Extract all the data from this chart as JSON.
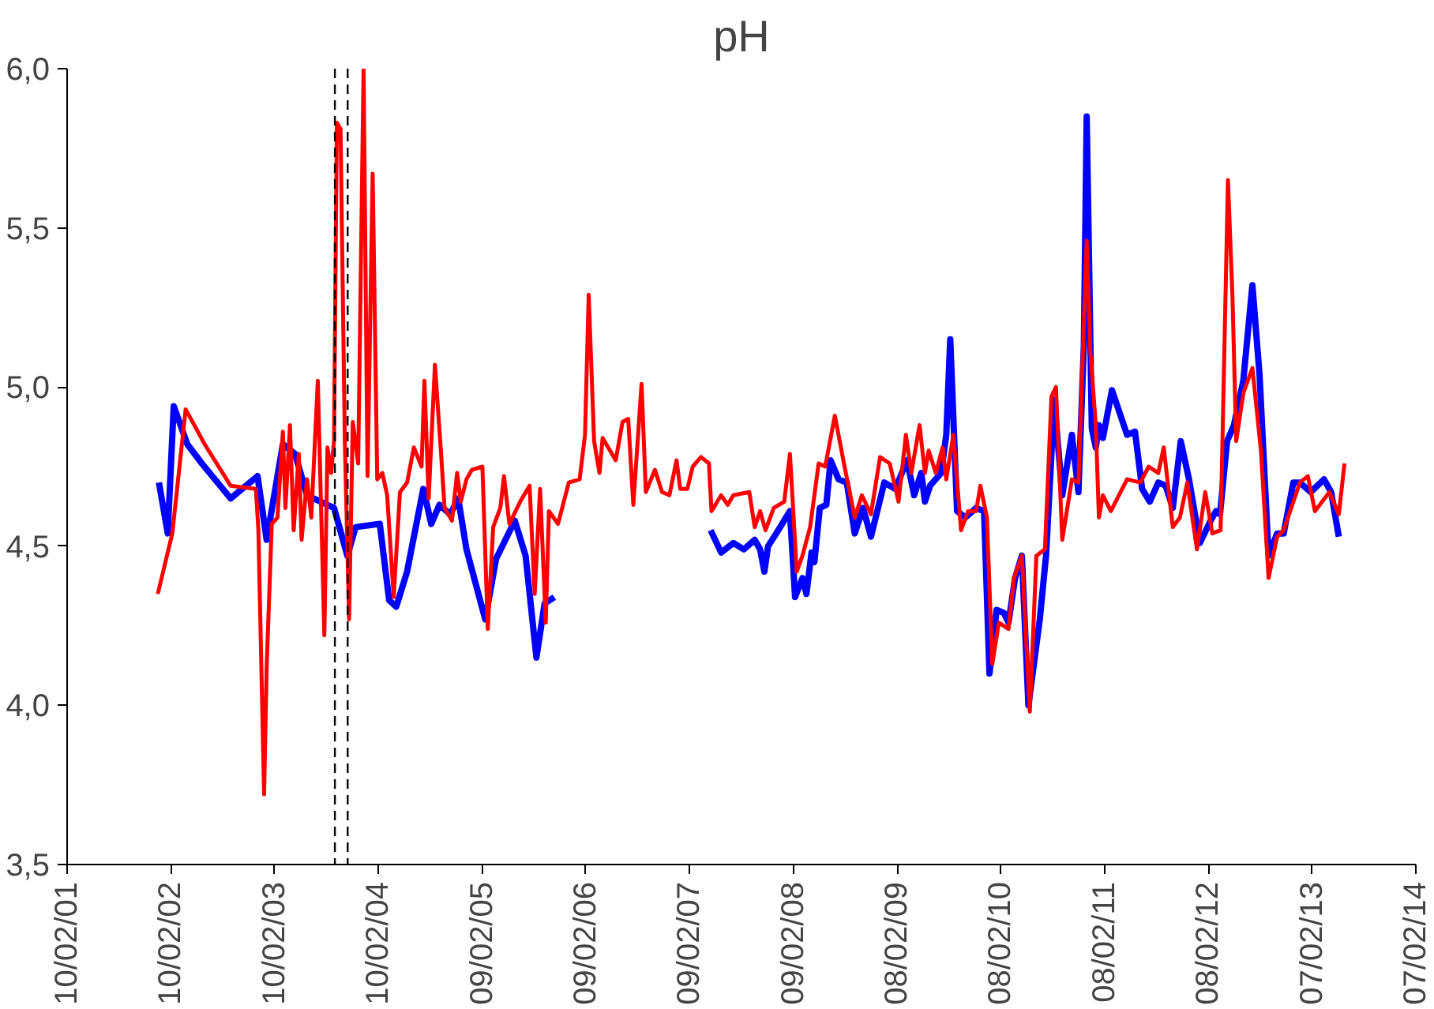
{
  "chart_data": {
    "type": "line",
    "title": "pH",
    "xlim": [
      "2001-02-10",
      "2014-02-07"
    ],
    "xticks": [
      {
        "value": "2001-02-10",
        "label": "10/02/01"
      },
      {
        "value": "2002-02-10",
        "label": "10/02/02"
      },
      {
        "value": "2003-02-10",
        "label": "10/02/03"
      },
      {
        "value": "2004-02-10",
        "label": "10/02/04"
      },
      {
        "value": "2005-02-09",
        "label": "09/02/05"
      },
      {
        "value": "2006-02-09",
        "label": "09/02/06"
      },
      {
        "value": "2007-02-09",
        "label": "09/02/07"
      },
      {
        "value": "2008-02-09",
        "label": "09/02/08"
      },
      {
        "value": "2009-02-08",
        "label": "08/02/09"
      },
      {
        "value": "2010-02-08",
        "label": "08/02/10"
      },
      {
        "value": "2011-02-08",
        "label": "08/02/11"
      },
      {
        "value": "2012-02-08",
        "label": "08/02/12"
      },
      {
        "value": "2013-02-07",
        "label": "07/02/13"
      },
      {
        "value": "2014-02-07",
        "label": "07/02/14"
      }
    ],
    "ylim": [
      3.5,
      6.0
    ],
    "yticks": [
      {
        "value": 3.5,
        "label": "3,5"
      },
      {
        "value": 4.0,
        "label": "4,0"
      },
      {
        "value": 4.5,
        "label": "4,5"
      },
      {
        "value": 5.0,
        "label": "5,0"
      },
      {
        "value": 5.5,
        "label": "5,5"
      },
      {
        "value": 6.0,
        "label": "6,0"
      }
    ],
    "grid": false,
    "line_style": "solid",
    "ref_lines": [
      {
        "axis": "x",
        "value": "2003-09-10",
        "color": "#000000",
        "line_style": "dashed"
      },
      {
        "axis": "x",
        "value": "2003-10-25",
        "color": "#000000",
        "line_style": "dashed"
      }
    ],
    "series": [
      {
        "color": "#0000ff",
        "x": [
          "2001-12-30",
          "2002-01-30",
          "2002-02-20",
          "2002-04-09",
          "2002-05-30",
          "2002-09-08",
          "2002-12-12",
          "2003-01-13",
          "2003-03-11",
          "2003-04-23",
          "2003-06-04",
          "2003-09-07",
          "2003-10-24",
          "2003-11-22",
          "2004-02-15",
          "2004-03-19",
          "2004-04-13",
          "2004-05-21",
          "2004-07-17",
          "2004-08-14",
          "2004-09-12",
          "2004-10-20",
          "2004-11-17",
          "2004-12-16",
          "2005-02-20",
          "2005-03-30",
          "2005-06-04",
          "2005-07-12",
          "2005-08-19",
          "2005-09-17",
          "2005-10-21",
          "2006-07-01",
          "2007-04-24",
          "2007-05-31",
          "2007-07-13",
          "2007-08-19",
          "2007-09-26",
          "2007-10-15",
          "2007-10-30",
          "2007-11-12",
          "2007-12-11",
          "2008-01-28",
          "2008-02-15",
          "2008-03-12",
          "2008-03-26",
          "2008-04-13",
          "2008-04-23",
          "2008-05-12",
          "2008-06-04",
          "2008-06-19",
          "2008-07-17",
          "2008-08-15",
          "2008-09-12",
          "2008-10-11",
          "2008-11-08",
          "2008-12-25",
          "2009-02-02",
          "2009-03-15",
          "2009-04-09",
          "2009-05-04",
          "2009-05-17",
          "2009-06-04",
          "2009-07-13",
          "2009-07-31",
          "2009-08-14",
          "2009-09-07",
          "2009-10-06",
          "2009-11-13",
          "2009-12-11",
          "2009-12-30",
          "2010-01-24",
          "2010-02-19",
          "2010-03-07",
          "2010-03-30",
          "2010-04-23",
          "2010-05-16",
          "2010-06-25",
          "2010-07-17",
          "2010-08-15",
          "2010-09-12",
          "2010-10-16",
          "2010-11-08",
          "2010-11-27",
          "2010-12-07",
          "2010-12-25",
          "2011-01-08",
          "2011-01-19",
          "2011-02-02",
          "2011-03-06",
          "2011-04-28",
          "2011-05-26",
          "2011-06-20",
          "2011-07-17",
          "2011-08-16",
          "2011-09-11",
          "2011-10-06",
          "2011-11-03",
          "2011-12-02",
          "2012-01-09",
          "2012-02-16",
          "2012-03-06",
          "2012-03-20",
          "2012-04-14",
          "2012-05-08",
          "2012-06-10",
          "2012-07-12",
          "2012-08-06",
          "2012-09-07",
          "2012-10-07",
          "2012-10-30",
          "2012-12-03",
          "2012-12-26",
          "2013-02-02",
          "2013-03-21",
          "2013-04-15",
          "2013-05-12"
        ],
        "values": [
          4.7,
          4.54,
          4.94,
          4.82,
          4.76,
          4.65,
          4.72,
          4.52,
          4.82,
          4.79,
          4.66,
          4.62,
          4.47,
          4.56,
          4.57,
          4.33,
          4.31,
          4.42,
          4.68,
          4.57,
          4.63,
          4.6,
          4.65,
          4.49,
          4.27,
          4.46,
          4.58,
          4.47,
          4.15,
          4.32,
          4.34,
          null,
          4.55,
          4.48,
          4.51,
          4.49,
          4.52,
          4.49,
          4.42,
          4.5,
          4.54,
          4.61,
          4.34,
          4.4,
          4.35,
          4.48,
          4.45,
          4.62,
          4.63,
          4.77,
          4.71,
          4.7,
          4.54,
          4.62,
          4.53,
          4.7,
          4.68,
          4.77,
          4.66,
          4.73,
          4.64,
          4.69,
          4.73,
          4.85,
          5.15,
          4.61,
          4.59,
          4.62,
          4.61,
          4.1,
          4.3,
          4.29,
          4.26,
          4.4,
          4.47,
          4.0,
          4.27,
          4.47,
          4.96,
          4.66,
          4.85,
          4.67,
          5.13,
          5.85,
          4.87,
          4.81,
          4.88,
          4.84,
          4.99,
          4.85,
          4.86,
          4.68,
          4.64,
          4.7,
          4.69,
          4.62,
          4.83,
          4.71,
          4.51,
          4.58,
          4.61,
          4.6,
          4.83,
          4.88,
          5.02,
          5.32,
          5.04,
          4.47,
          4.54,
          4.54,
          4.7,
          4.7,
          4.67,
          4.71,
          4.67,
          4.53
        ]
      },
      {
        "color": "#ff0000",
        "x": [
          "2001-12-26",
          "2002-02-15",
          "2002-04-03",
          "2002-06-09",
          "2002-09-08",
          "2002-12-06",
          "2002-12-15",
          "2003-01-04",
          "2003-01-13",
          "2003-01-31",
          "2003-02-20",
          "2003-03-11",
          "2003-03-20",
          "2003-04-05",
          "2003-04-18",
          "2003-05-06",
          "2003-05-16",
          "2003-06-04",
          "2003-06-19",
          "2003-07-12",
          "2003-08-04",
          "2003-08-15",
          "2003-08-28",
          "2003-09-07",
          "2003-09-17",
          "2003-09-30",
          "2003-10-15",
          "2003-10-30",
          "2003-11-12",
          "2003-12-01",
          "2003-12-20",
          "2004-01-03",
          "2004-01-21",
          "2004-02-06",
          "2004-02-24",
          "2004-03-12",
          "2004-04-04",
          "2004-04-26",
          "2004-05-21",
          "2004-06-14",
          "2004-07-11",
          "2004-07-21",
          "2004-08-05",
          "2004-08-27",
          "2004-09-17",
          "2004-09-30",
          "2004-10-26",
          "2004-11-13",
          "2004-11-26",
          "2004-12-16",
          "2005-01-04",
          "2005-02-10",
          "2005-03-01",
          "2005-03-20",
          "2005-04-14",
          "2005-04-27",
          "2005-05-16",
          "2005-06-23",
          "2005-07-26",
          "2005-08-13",
          "2005-09-01",
          "2005-09-21",
          "2005-10-02",
          "2005-11-03",
          "2005-12-11",
          "2006-01-18",
          "2006-02-06",
          "2006-02-19",
          "2006-03-10",
          "2006-03-29",
          "2006-04-09",
          "2006-05-25",
          "2006-06-18",
          "2006-07-08",
          "2006-07-26",
          "2006-08-24",
          "2006-09-08",
          "2006-10-10",
          "2006-11-04",
          "2006-11-30",
          "2006-12-25",
          "2007-01-07",
          "2007-02-01",
          "2007-02-20",
          "2007-03-21",
          "2007-04-18",
          "2007-04-27",
          "2007-05-31",
          "2007-06-23",
          "2007-07-13",
          "2007-09-07",
          "2007-09-26",
          "2007-10-15",
          "2007-11-03",
          "2007-12-02",
          "2008-01-08",
          "2008-01-28",
          "2008-02-21",
          "2008-03-12",
          "2008-04-08",
          "2008-05-08",
          "2008-05-31",
          "2008-07-04",
          "2008-08-05",
          "2008-09-12",
          "2008-10-07",
          "2008-11-08",
          "2008-12-10",
          "2009-01-13",
          "2009-02-13",
          "2009-03-11",
          "2009-03-30",
          "2009-04-28",
          "2009-05-17",
          "2009-05-30",
          "2009-06-24",
          "2009-07-18",
          "2009-07-31",
          "2009-08-25",
          "2009-09-21",
          "2009-10-16",
          "2009-11-13",
          "2009-11-28",
          "2009-12-21",
          "2010-01-09",
          "2010-02-01",
          "2010-03-07",
          "2010-03-26",
          "2010-04-23",
          "2010-05-21",
          "2010-06-13",
          "2010-07-13",
          "2010-08-05",
          "2010-08-21",
          "2010-09-12",
          "2010-10-16",
          "2010-11-08",
          "2010-12-07",
          "2010-12-20",
          "2011-01-08",
          "2011-01-19",
          "2011-02-02",
          "2011-03-02",
          "2011-04-28",
          "2011-06-14",
          "2011-07-13",
          "2011-08-16",
          "2011-09-04",
          "2011-10-06",
          "2011-10-31",
          "2011-11-26",
          "2011-12-30",
          "2012-01-28",
          "2012-02-22",
          "2012-03-22",
          "2012-04-17",
          "2012-05-03",
          "2012-05-16",
          "2012-06-10",
          "2012-07-12",
          "2012-08-11",
          "2012-09-07",
          "2012-10-07",
          "2012-10-30",
          "2012-12-26",
          "2013-01-23",
          "2013-02-17",
          "2013-04-09",
          "2013-05-12",
          "2013-06-01"
        ],
        "values": [
          4.35,
          4.54,
          4.93,
          4.82,
          4.69,
          4.68,
          4.55,
          3.72,
          4.12,
          4.57,
          4.59,
          4.86,
          4.62,
          4.88,
          4.55,
          4.79,
          4.52,
          4.71,
          4.59,
          5.02,
          4.22,
          4.81,
          4.73,
          4.83,
          5.83,
          5.81,
          4.83,
          4.27,
          4.89,
          4.76,
          6.0,
          4.72,
          5.67,
          4.71,
          4.73,
          4.66,
          4.34,
          4.67,
          4.7,
          4.81,
          4.75,
          5.02,
          4.65,
          5.07,
          4.8,
          4.62,
          4.58,
          4.73,
          4.64,
          4.71,
          4.74,
          4.75,
          4.24,
          4.56,
          4.62,
          4.72,
          4.57,
          4.64,
          4.69,
          4.35,
          4.68,
          4.26,
          4.61,
          4.57,
          4.7,
          4.71,
          4.85,
          5.29,
          4.83,
          4.73,
          4.84,
          4.77,
          4.89,
          4.9,
          4.63,
          5.01,
          4.67,
          4.74,
          4.67,
          4.66,
          4.77,
          4.68,
          4.68,
          4.75,
          4.78,
          4.76,
          4.61,
          4.66,
          4.63,
          4.66,
          4.67,
          4.56,
          4.61,
          4.55,
          4.62,
          4.64,
          4.79,
          4.42,
          4.47,
          4.56,
          4.76,
          4.75,
          4.91,
          4.76,
          4.59,
          4.66,
          4.6,
          4.78,
          4.76,
          4.64,
          4.85,
          4.73,
          4.88,
          4.73,
          4.8,
          4.73,
          4.81,
          4.71,
          4.85,
          4.55,
          4.61,
          4.61,
          4.69,
          4.59,
          4.13,
          4.26,
          4.24,
          4.4,
          4.47,
          3.98,
          4.47,
          4.49,
          4.97,
          5.0,
          4.52,
          4.71,
          4.7,
          5.46,
          5.11,
          4.88,
          4.59,
          4.66,
          4.61,
          4.71,
          4.7,
          4.75,
          4.73,
          4.81,
          4.56,
          4.59,
          4.7,
          4.49,
          4.67,
          4.54,
          4.55,
          5.65,
          5.28,
          4.83,
          4.98,
          5.06,
          4.8,
          4.4,
          4.53,
          4.55,
          4.7,
          4.72,
          4.61,
          4.67,
          4.6,
          4.76
        ]
      }
    ]
  }
}
